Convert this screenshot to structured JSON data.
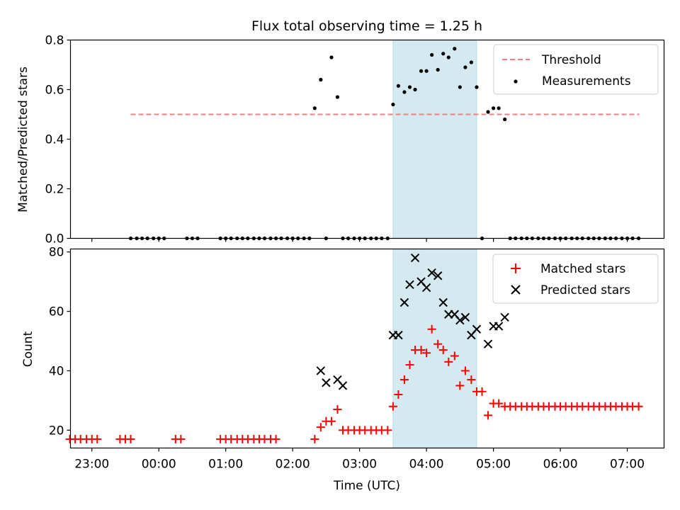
{
  "chart_data": [
    {
      "type": "scatter",
      "title": "Flux total observing time = 1.25 h",
      "xlabel": "",
      "ylabel": "Matched/Predicted stars",
      "xlim": [
        -1.32,
        7.55
      ],
      "ylim": [
        0,
        0.8
      ],
      "yticks": [
        0.0,
        0.2,
        0.4,
        0.6,
        0.8
      ],
      "ytick_labels": [
        "0.0",
        "0.2",
        "0.4",
        "0.6",
        "0.8"
      ],
      "shaded_span": [
        3.5,
        4.75
      ],
      "shaded_color": "#d4e9f0",
      "grid": false,
      "legend_position": "upper right",
      "threshold": {
        "name": "Threshold",
        "y": 0.5,
        "x": [
          -0.42,
          7.18
        ],
        "color": "#f08080",
        "style": "dashed"
      },
      "series": [
        {
          "name": "Measurements",
          "color": "#000000",
          "marker": "dot",
          "x": [
            -0.42,
            -0.33,
            -0.25,
            -0.17,
            -0.08,
            0.0,
            0.08,
            0.42,
            0.5,
            0.58,
            0.92,
            1.0,
            1.08,
            1.17,
            1.25,
            1.33,
            1.42,
            1.5,
            1.58,
            1.67,
            1.75,
            1.83,
            1.92,
            2.0,
            2.08,
            2.17,
            2.25,
            2.33,
            2.42,
            2.5,
            2.58,
            2.67,
            2.75,
            2.83,
            2.92,
            3.0,
            3.08,
            3.17,
            3.25,
            3.33,
            3.42,
            3.5,
            3.58,
            3.67,
            3.75,
            3.83,
            3.92,
            4.0,
            4.08,
            4.17,
            4.25,
            4.33,
            4.42,
            4.5,
            4.58,
            4.67,
            4.75,
            4.83,
            4.92,
            5.0,
            5.08,
            5.17,
            5.25,
            5.33,
            5.42,
            5.5,
            5.58,
            5.67,
            5.75,
            5.83,
            5.92,
            6.0,
            6.08,
            6.17,
            6.25,
            6.33,
            6.42,
            6.5,
            6.58,
            6.67,
            6.75,
            6.83,
            6.92,
            7.0,
            7.08,
            7.17
          ],
          "y": [
            0,
            0,
            0,
            0,
            0,
            0,
            0,
            0,
            0,
            0,
            0,
            0,
            0,
            0,
            0,
            0,
            0,
            0,
            0,
            0,
            0,
            0,
            0,
            0,
            0,
            0,
            0,
            0.525,
            0.64,
            0,
            0.73,
            0.57,
            0,
            0,
            0,
            0,
            0,
            0,
            0,
            0,
            0,
            0.54,
            0.615,
            0.59,
            0.61,
            0.6,
            0.675,
            0.675,
            0.74,
            0.68,
            0.745,
            0.73,
            0.765,
            0.61,
            0.69,
            0.71,
            0.61,
            0,
            0.51,
            0.525,
            0.525,
            0.48,
            0,
            0,
            0,
            0,
            0,
            0,
            0,
            0,
            0,
            0,
            0,
            0,
            0,
            0,
            0,
            0,
            0,
            0,
            0,
            0,
            0,
            0,
            0,
            0
          ]
        }
      ]
    },
    {
      "type": "scatter",
      "title": "",
      "xlabel": "Time (UTC)",
      "ylabel": "Count",
      "xlim": [
        -1.32,
        7.55
      ],
      "ylim": [
        14,
        81
      ],
      "yticks": [
        20,
        40,
        60,
        80
      ],
      "ytick_labels": [
        "20",
        "40",
        "60",
        "80"
      ],
      "xticks": [
        -1,
        0,
        1,
        2,
        3,
        4,
        5,
        6,
        7
      ],
      "xtick_labels": [
        "23:00",
        "00:00",
        "01:00",
        "02:00",
        "03:00",
        "04:00",
        "05:00",
        "06:00",
        "07:00"
      ],
      "shaded_span": [
        3.5,
        4.75
      ],
      "shaded_color": "#d4e9f0",
      "grid": false,
      "legend_position": "upper right",
      "series": [
        {
          "name": "Matched stars",
          "color": "#ff0000",
          "marker": "plus",
          "x": [
            -1.42,
            -1.33,
            -1.25,
            -1.17,
            -1.08,
            -1.0,
            -0.92,
            -0.58,
            -0.5,
            -0.42,
            0.25,
            0.33,
            0.92,
            1.0,
            1.08,
            1.17,
            1.25,
            1.33,
            1.42,
            1.5,
            1.58,
            1.67,
            1.75,
            2.33,
            2.42,
            2.5,
            2.58,
            2.67,
            2.75,
            2.83,
            2.92,
            3.0,
            3.08,
            3.17,
            3.25,
            3.33,
            3.42,
            3.5,
            3.58,
            3.67,
            3.75,
            3.83,
            3.92,
            4.0,
            4.08,
            4.17,
            4.25,
            4.33,
            4.42,
            4.5,
            4.58,
            4.67,
            4.75,
            4.83,
            4.92,
            5.0,
            5.08,
            5.17,
            5.25,
            5.33,
            5.42,
            5.5,
            5.58,
            5.67,
            5.75,
            5.83,
            5.92,
            6.0,
            6.08,
            6.17,
            6.25,
            6.33,
            6.42,
            6.5,
            6.58,
            6.67,
            6.75,
            6.83,
            6.92,
            7.0,
            7.08,
            7.17
          ],
          "y": [
            17,
            17,
            17,
            17,
            17,
            17,
            17,
            17,
            17,
            17,
            17,
            17,
            17,
            17,
            17,
            17,
            17,
            17,
            17,
            17,
            17,
            17,
            17,
            17,
            21,
            23,
            23,
            27,
            20,
            20,
            20,
            20,
            20,
            20,
            20,
            20,
            20,
            28,
            32,
            37,
            42,
            47,
            47,
            46,
            54,
            49,
            47,
            43,
            45,
            35,
            40,
            37,
            33,
            33,
            25,
            29,
            29,
            28,
            28,
            28,
            28,
            28,
            28,
            28,
            28,
            28,
            28,
            28,
            28,
            28,
            28,
            28,
            28,
            28,
            28,
            28,
            28,
            28,
            28,
            28,
            28,
            28
          ]
        },
        {
          "name": "Predicted stars",
          "color": "#000000",
          "marker": "x",
          "x": [
            2.42,
            2.5,
            2.67,
            2.75,
            3.5,
            3.58,
            3.67,
            3.75,
            3.83,
            3.92,
            4.0,
            4.08,
            4.17,
            4.25,
            4.33,
            4.42,
            4.5,
            4.58,
            4.67,
            4.75,
            4.92,
            5.0,
            5.08,
            5.17
          ],
          "y": [
            40,
            36,
            37,
            35,
            52,
            52,
            63,
            69,
            78,
            70,
            68,
            73,
            72,
            63,
            59,
            59,
            57,
            58,
            52,
            54,
            49,
            55,
            55,
            58
          ]
        }
      ]
    }
  ]
}
